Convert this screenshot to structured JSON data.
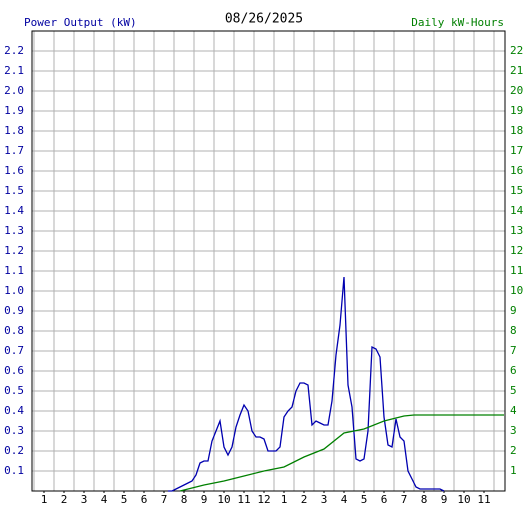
{
  "chart_data": {
    "type": "line",
    "title": "08/26/2025",
    "y_label": "Power Output (kW)",
    "y2_label": "Daily kW-Hours",
    "xlim": [
      0.4,
      24.05
    ],
    "xticks": [
      1,
      2,
      3,
      4,
      5,
      6,
      7,
      8,
      9,
      10,
      11,
      12,
      {
        "value": 13,
        "label": "1"
      },
      {
        "value": 14,
        "label": "2"
      },
      {
        "value": 15,
        "label": "3"
      },
      {
        "value": 16,
        "label": "4"
      },
      {
        "value": 17,
        "label": "5"
      },
      {
        "value": 18,
        "label": "6"
      },
      {
        "value": 19,
        "label": "7"
      },
      {
        "value": 20,
        "label": "8"
      },
      {
        "value": 21,
        "label": "9"
      },
      {
        "value": 22,
        "label": "10"
      },
      {
        "value": 23,
        "label": "11"
      }
    ],
    "ylim": [
      0,
      2.3
    ],
    "yticks": [
      0.1,
      0.2,
      0.3,
      0.4,
      0.5,
      0.6,
      0.7,
      0.8,
      0.9,
      {
        "value": 1,
        "label": "1.0"
      },
      1.1,
      1.2,
      1.3,
      1.4,
      1.5,
      1.6,
      1.7,
      1.8,
      1.9,
      {
        "value": 2,
        "label": "2.0"
      },
      2.1,
      2.2
    ],
    "y2lim": [
      0,
      23
    ],
    "y2ticks": [
      1,
      2,
      3,
      4,
      5,
      6,
      7,
      8,
      9,
      10,
      11,
      12,
      13,
      14,
      15,
      16,
      17,
      18,
      19,
      20,
      21,
      22
    ],
    "y_color": "#0000a0",
    "y2_color": "#008000",
    "grid": true,
    "series": [
      {
        "name": "Power Output (kW)",
        "color": "#0000b0",
        "x": [
          7.2,
          7.4,
          7.6,
          7.8,
          8.0,
          8.2,
          8.4,
          8.6,
          8.8,
          9.0,
          9.2,
          9.4,
          9.6,
          9.8,
          10.0,
          10.2,
          10.4,
          10.6,
          10.8,
          11.0,
          11.2,
          11.4,
          11.6,
          11.8,
          12.0,
          12.2,
          12.4,
          12.6,
          12.8,
          13.0,
          13.2,
          13.4,
          13.6,
          13.8,
          14.0,
          14.2,
          14.4,
          14.6,
          14.8,
          15.0,
          15.2,
          15.4,
          15.6,
          15.8,
          16.0,
          16.2,
          16.4,
          16.6,
          16.8,
          17.0,
          17.2,
          17.4,
          17.6,
          17.8,
          18.0,
          18.2,
          18.4,
          18.6,
          18.8,
          19.0,
          19.2,
          19.4,
          19.6,
          19.8,
          20.0,
          20.2,
          20.4,
          20.6,
          20.8,
          21.0
        ],
        "values": [
          0,
          0,
          0.01,
          0.02,
          0.03,
          0.04,
          0.05,
          0.08,
          0.14,
          0.15,
          0.15,
          0.25,
          0.3,
          0.35,
          0.22,
          0.18,
          0.22,
          0.32,
          0.38,
          0.43,
          0.4,
          0.3,
          0.27,
          0.27,
          0.26,
          0.2,
          0.2,
          0.2,
          0.22,
          0.37,
          0.4,
          0.42,
          0.5,
          0.54,
          0.54,
          0.53,
          0.33,
          0.35,
          0.34,
          0.33,
          0.33,
          0.45,
          0.68,
          0.83,
          1.07,
          0.53,
          0.42,
          0.16,
          0.15,
          0.16,
          0.3,
          0.72,
          0.71,
          0.67,
          0.37,
          0.23,
          0.22,
          0.36,
          0.27,
          0.25,
          0.1,
          0.06,
          0.02,
          0.01,
          0.01,
          0.01,
          0.01,
          0.01,
          0.01,
          0
        ]
      },
      {
        "name": "Daily kW-Hours",
        "color": "#008000",
        "axis": "y2",
        "x": [
          7.8,
          9,
          10,
          11,
          12,
          13,
          14,
          15,
          16,
          17,
          18,
          19,
          19.5,
          24
        ],
        "values": [
          0,
          0.3,
          0.5,
          0.75,
          1.0,
          1.2,
          1.7,
          2.1,
          2.9,
          3.1,
          3.5,
          3.75,
          3.8,
          3.8
        ]
      }
    ]
  }
}
